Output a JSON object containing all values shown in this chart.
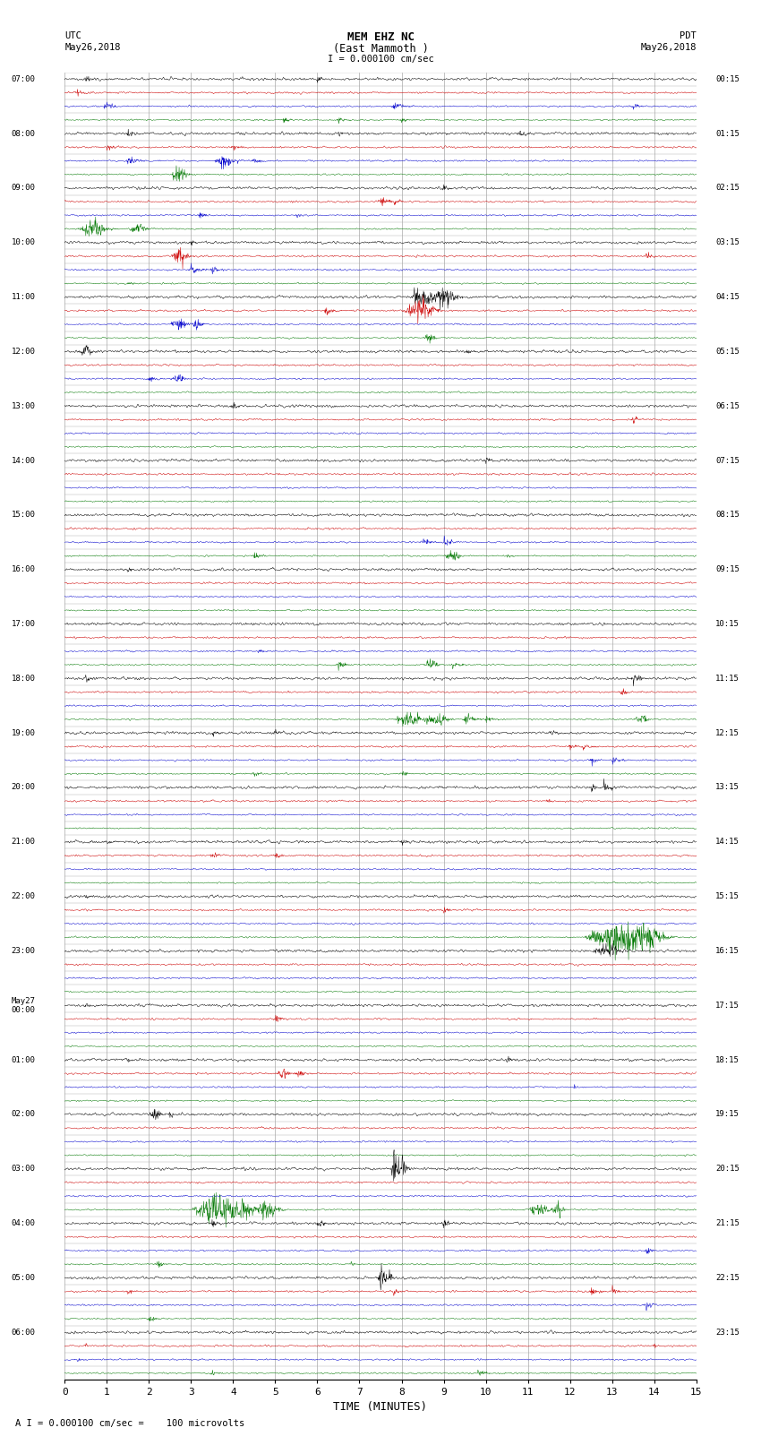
{
  "title_line1": "MEM EHZ NC",
  "title_line2": "(East Mammoth )",
  "scale_label": "I = 0.000100 cm/sec",
  "footer_label": "A I = 0.000100 cm/sec =    100 microvolts",
  "utc_label": "UTC",
  "pdt_label": "PDT",
  "date_left": "May26,2018",
  "date_right": "May26,2018",
  "xlabel": "TIME (MINUTES)",
  "xlim": [
    0,
    15
  ],
  "xticks": [
    0,
    1,
    2,
    3,
    4,
    5,
    6,
    7,
    8,
    9,
    10,
    11,
    12,
    13,
    14,
    15
  ],
  "fig_width": 8.5,
  "fig_height": 16.13,
  "dpi": 100,
  "bg_color": "#ffffff",
  "trace_colors": [
    "#000000",
    "#cc0000",
    "#0000cc",
    "#007700"
  ],
  "grid_color": "#aaaaaa",
  "n_rows": 96,
  "left_labels": [
    "07:00",
    "",
    "",
    "",
    "08:00",
    "",
    "",
    "",
    "09:00",
    "",
    "",
    "",
    "10:00",
    "",
    "",
    "",
    "11:00",
    "",
    "",
    "",
    "12:00",
    "",
    "",
    "",
    "13:00",
    "",
    "",
    "",
    "14:00",
    "",
    "",
    "",
    "15:00",
    "",
    "",
    "",
    "16:00",
    "",
    "",
    "",
    "17:00",
    "",
    "",
    "",
    "18:00",
    "",
    "",
    "",
    "19:00",
    "",
    "",
    "",
    "20:00",
    "",
    "",
    "",
    "21:00",
    "",
    "",
    "",
    "22:00",
    "",
    "",
    "",
    "23:00",
    "",
    "",
    "",
    "May27\n00:00",
    "",
    "",
    "",
    "01:00",
    "",
    "",
    "",
    "02:00",
    "",
    "",
    "",
    "03:00",
    "",
    "",
    "",
    "04:00",
    "",
    "",
    "",
    "05:00",
    "",
    "",
    "",
    "06:00",
    "",
    "",
    ""
  ],
  "right_labels": [
    "00:15",
    "",
    "",
    "",
    "01:15",
    "",
    "",
    "",
    "02:15",
    "",
    "",
    "",
    "03:15",
    "",
    "",
    "",
    "04:15",
    "",
    "",
    "",
    "05:15",
    "",
    "",
    "",
    "06:15",
    "",
    "",
    "",
    "07:15",
    "",
    "",
    "",
    "08:15",
    "",
    "",
    "",
    "09:15",
    "",
    "",
    "",
    "10:15",
    "",
    "",
    "",
    "11:15",
    "",
    "",
    "",
    "12:15",
    "",
    "",
    "",
    "13:15",
    "",
    "",
    "",
    "14:15",
    "",
    "",
    "",
    "15:15",
    "",
    "",
    "",
    "16:15",
    "",
    "",
    "",
    "17:15",
    "",
    "",
    "",
    "18:15",
    "",
    "",
    "",
    "19:15",
    "",
    "",
    "",
    "20:15",
    "",
    "",
    "",
    "21:15",
    "",
    "",
    "",
    "22:15",
    "",
    "",
    "",
    "23:15",
    "",
    "",
    ""
  ],
  "noise_levels": [
    0.1,
    0.07,
    0.06,
    0.055
  ],
  "samples_per_row": 1800
}
